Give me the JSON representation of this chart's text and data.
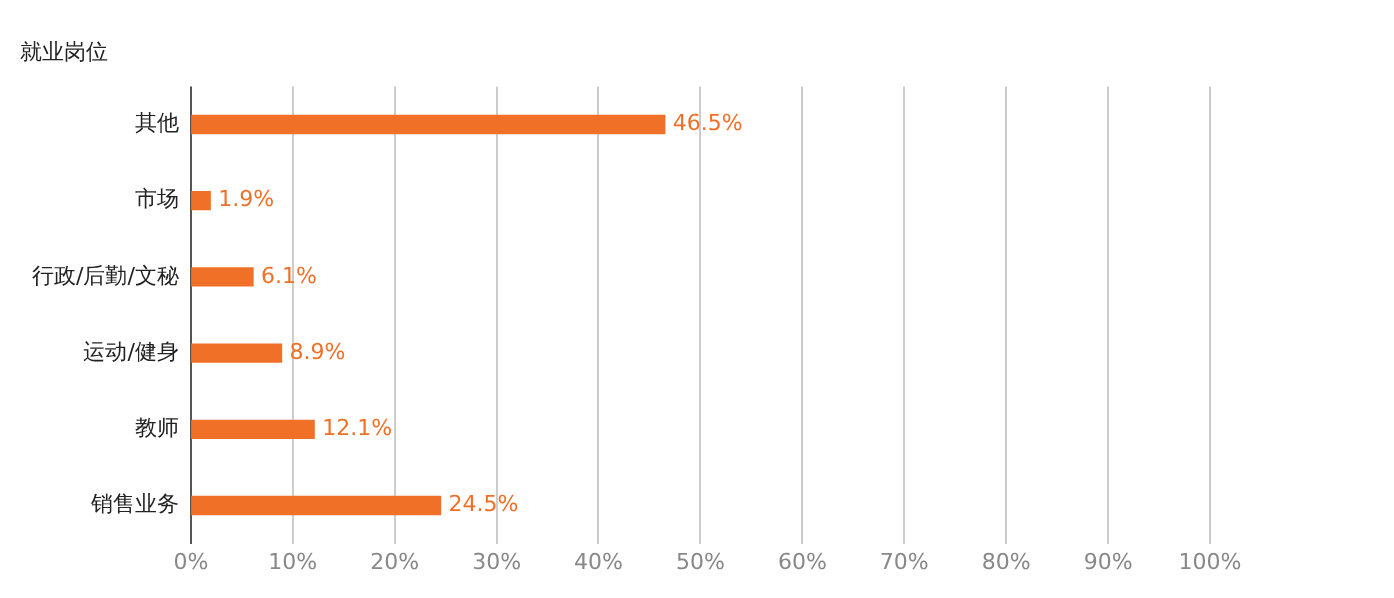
{
  "chart_data": {
    "type": "bar",
    "orientation": "horizontal",
    "ylabel": "就业岗位",
    "categories": [
      "其他",
      "市场",
      "行政/后勤/文秘",
      "运动/健身",
      "教师",
      "销售业务"
    ],
    "values": [
      46.5,
      1.9,
      6.1,
      8.9,
      12.1,
      24.5
    ],
    "value_labels": [
      "46.5%",
      "1.9%",
      "6.1%",
      "8.9%",
      "12.1%",
      "24.5%"
    ],
    "color": "#f07028",
    "xlim": [
      0,
      100
    ],
    "xticks": [
      {
        "value": 0,
        "label": "0%"
      },
      {
        "value": 10,
        "label": "10%"
      },
      {
        "value": 20,
        "label": "20%"
      },
      {
        "value": 30,
        "label": "30%"
      },
      {
        "value": 40,
        "label": "40%"
      },
      {
        "value": 50,
        "label": "50%"
      },
      {
        "value": 60,
        "label": "60%"
      },
      {
        "value": 70,
        "label": "70%"
      },
      {
        "value": 80,
        "label": "80%"
      },
      {
        "value": 90,
        "label": "90%"
      },
      {
        "value": 100,
        "label": "100%"
      }
    ],
    "grid": "x",
    "legend": false
  }
}
